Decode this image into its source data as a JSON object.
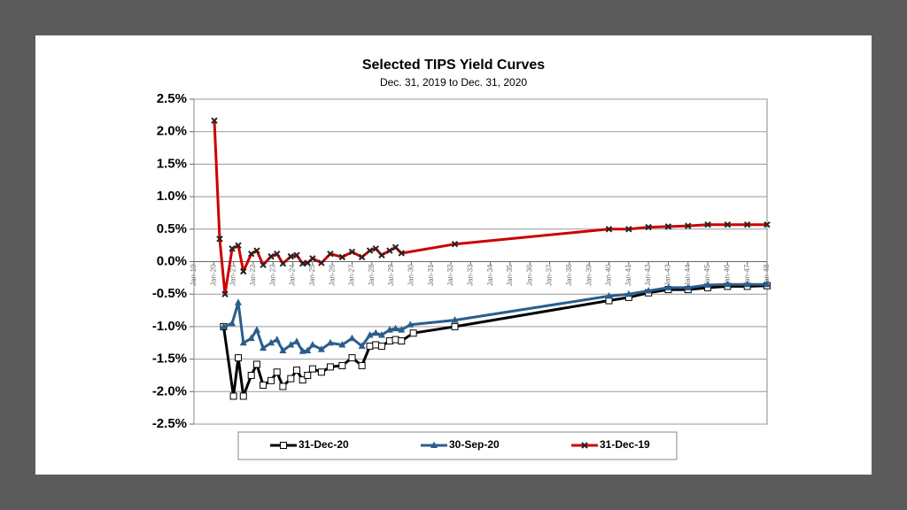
{
  "chart_data": {
    "type": "line",
    "title": "Selected TIPS Yield Curves",
    "subtitle": "Dec. 31, 2019 to Dec. 31, 2020",
    "xlim": [
      2019,
      2048
    ],
    "xticks": [
      {
        "value": 2019,
        "label": "Jan-19"
      },
      {
        "value": 2020,
        "label": "Jan-20"
      },
      {
        "value": 2021,
        "label": "Jan-21"
      },
      {
        "value": 2022,
        "label": "Jan-22"
      },
      {
        "value": 2023,
        "label": "Jan-23"
      },
      {
        "value": 2024,
        "label": "Jan-24"
      },
      {
        "value": 2025,
        "label": "Jan-25"
      },
      {
        "value": 2026,
        "label": "Jan-26"
      },
      {
        "value": 2027,
        "label": "Jan-27"
      },
      {
        "value": 2028,
        "label": "Jan-28"
      },
      {
        "value": 2029,
        "label": "Jan-29"
      },
      {
        "value": 2030,
        "label": "Jan-30"
      },
      {
        "value": 2031,
        "label": "Jan-31"
      },
      {
        "value": 2032,
        "label": "Jan-32"
      },
      {
        "value": 2033,
        "label": "Jan-33"
      },
      {
        "value": 2034,
        "label": "Jan-34"
      },
      {
        "value": 2035,
        "label": "Jan-35"
      },
      {
        "value": 2036,
        "label": "Jan-36"
      },
      {
        "value": 2037,
        "label": "Jan-37"
      },
      {
        "value": 2038,
        "label": "Jan-38"
      },
      {
        "value": 2039,
        "label": "Jan-39"
      },
      {
        "value": 2040,
        "label": "Jan-40"
      },
      {
        "value": 2041,
        "label": "Jan-41"
      },
      {
        "value": 2042,
        "label": "Jan-42"
      },
      {
        "value": 2043,
        "label": "Jan-43"
      },
      {
        "value": 2044,
        "label": "Jan-44"
      },
      {
        "value": 2045,
        "label": "Jan-45"
      },
      {
        "value": 2046,
        "label": "Jan-46"
      },
      {
        "value": 2047,
        "label": "Jan-47"
      },
      {
        "value": 2048,
        "label": "Jan-48"
      }
    ],
    "ylim": [
      -2.5,
      2.5
    ],
    "yticks": [
      {
        "value": 2.5,
        "label": "2.5%"
      },
      {
        "value": 2,
        "label": "2.0%"
      },
      {
        "value": 1.5,
        "label": "1.5%"
      },
      {
        "value": 1,
        "label": "1.0%"
      },
      {
        "value": 0.5,
        "label": "0.5%"
      },
      {
        "value": 0,
        "label": "0.0%"
      },
      {
        "value": -0.5,
        "label": "-0.5%"
      },
      {
        "value": -1,
        "label": "-1.0%"
      },
      {
        "value": -1.5,
        "label": "-1.5%"
      },
      {
        "value": -2,
        "label": "-2.0%"
      },
      {
        "value": -2.5,
        "label": "-2.5%"
      }
    ],
    "grid": true,
    "legend": "bottom",
    "series": [
      {
        "name": "31-Dec-20",
        "color": "#000000",
        "marker": "square",
        "x": [
          2020.5,
          2021.0,
          2021.24,
          2021.5,
          2021.9,
          2022.18,
          2022.5,
          2022.9,
          2023.2,
          2023.5,
          2023.9,
          2024.2,
          2024.5,
          2024.75,
          2025.0,
          2025.45,
          2025.9,
          2026.5,
          2027.0,
          2027.5,
          2027.9,
          2028.2,
          2028.5,
          2028.9,
          2029.2,
          2029.5,
          2030.1,
          2032.2,
          2040,
          2041,
          2042,
          2043,
          2044,
          2045,
          2046,
          2047,
          2048
        ],
        "values": [
          -1.0,
          -2.07,
          -1.48,
          -2.07,
          -1.75,
          -1.58,
          -1.9,
          -1.83,
          -1.7,
          -1.92,
          -1.8,
          -1.67,
          -1.82,
          -1.75,
          -1.65,
          -1.7,
          -1.62,
          -1.6,
          -1.48,
          -1.6,
          -1.3,
          -1.28,
          -1.3,
          -1.22,
          -1.2,
          -1.22,
          -1.1,
          -1.0,
          -0.6,
          -0.55,
          -0.48,
          -0.43,
          -0.43,
          -0.4,
          -0.38,
          -0.38,
          -0.37
        ]
      },
      {
        "name": "30-Sep-20",
        "color": "#2b5d8c",
        "marker": "triangle",
        "x": [
          2020.5,
          2020.93,
          2021.24,
          2021.5,
          2021.9,
          2022.18,
          2022.5,
          2022.9,
          2023.2,
          2023.5,
          2023.9,
          2024.2,
          2024.5,
          2024.75,
          2025.0,
          2025.45,
          2025.9,
          2026.5,
          2027.0,
          2027.5,
          2027.9,
          2028.2,
          2028.5,
          2028.9,
          2029.2,
          2029.5,
          2029.95,
          2032.2,
          2040,
          2041,
          2042,
          2043,
          2044,
          2045,
          2046,
          2047,
          2048
        ],
        "values": [
          -1.0,
          -0.95,
          -0.63,
          -1.25,
          -1.18,
          -1.05,
          -1.33,
          -1.25,
          -1.2,
          -1.37,
          -1.28,
          -1.23,
          -1.38,
          -1.37,
          -1.28,
          -1.35,
          -1.25,
          -1.28,
          -1.18,
          -1.3,
          -1.13,
          -1.1,
          -1.13,
          -1.05,
          -1.03,
          -1.05,
          -0.97,
          -0.9,
          -0.53,
          -0.5,
          -0.45,
          -0.4,
          -0.4,
          -0.36,
          -0.35,
          -0.35,
          -0.35
        ]
      },
      {
        "name": "31-Dec-19",
        "color": "#cc0000",
        "marker": "x",
        "x": [
          2020.03,
          2020.3,
          2020.57,
          2020.93,
          2021.24,
          2021.5,
          2021.9,
          2022.18,
          2022.5,
          2022.9,
          2023.2,
          2023.5,
          2023.9,
          2024.2,
          2024.5,
          2024.75,
          2025.0,
          2025.45,
          2025.9,
          2026.5,
          2027.0,
          2027.5,
          2027.9,
          2028.2,
          2028.5,
          2028.9,
          2029.2,
          2029.5,
          2032.2,
          2040,
          2041,
          2042,
          2043,
          2044,
          2045,
          2046,
          2047,
          2048
        ],
        "values": [
          2.17,
          0.35,
          -0.5,
          0.2,
          0.25,
          -0.15,
          0.12,
          0.17,
          -0.05,
          0.08,
          0.12,
          -0.03,
          0.08,
          0.1,
          -0.03,
          -0.02,
          0.05,
          -0.02,
          0.12,
          0.07,
          0.15,
          0.07,
          0.17,
          0.2,
          0.1,
          0.17,
          0.22,
          0.13,
          0.27,
          0.5,
          0.5,
          0.53,
          0.54,
          0.55,
          0.57,
          0.57,
          0.57,
          0.57
        ]
      }
    ]
  }
}
